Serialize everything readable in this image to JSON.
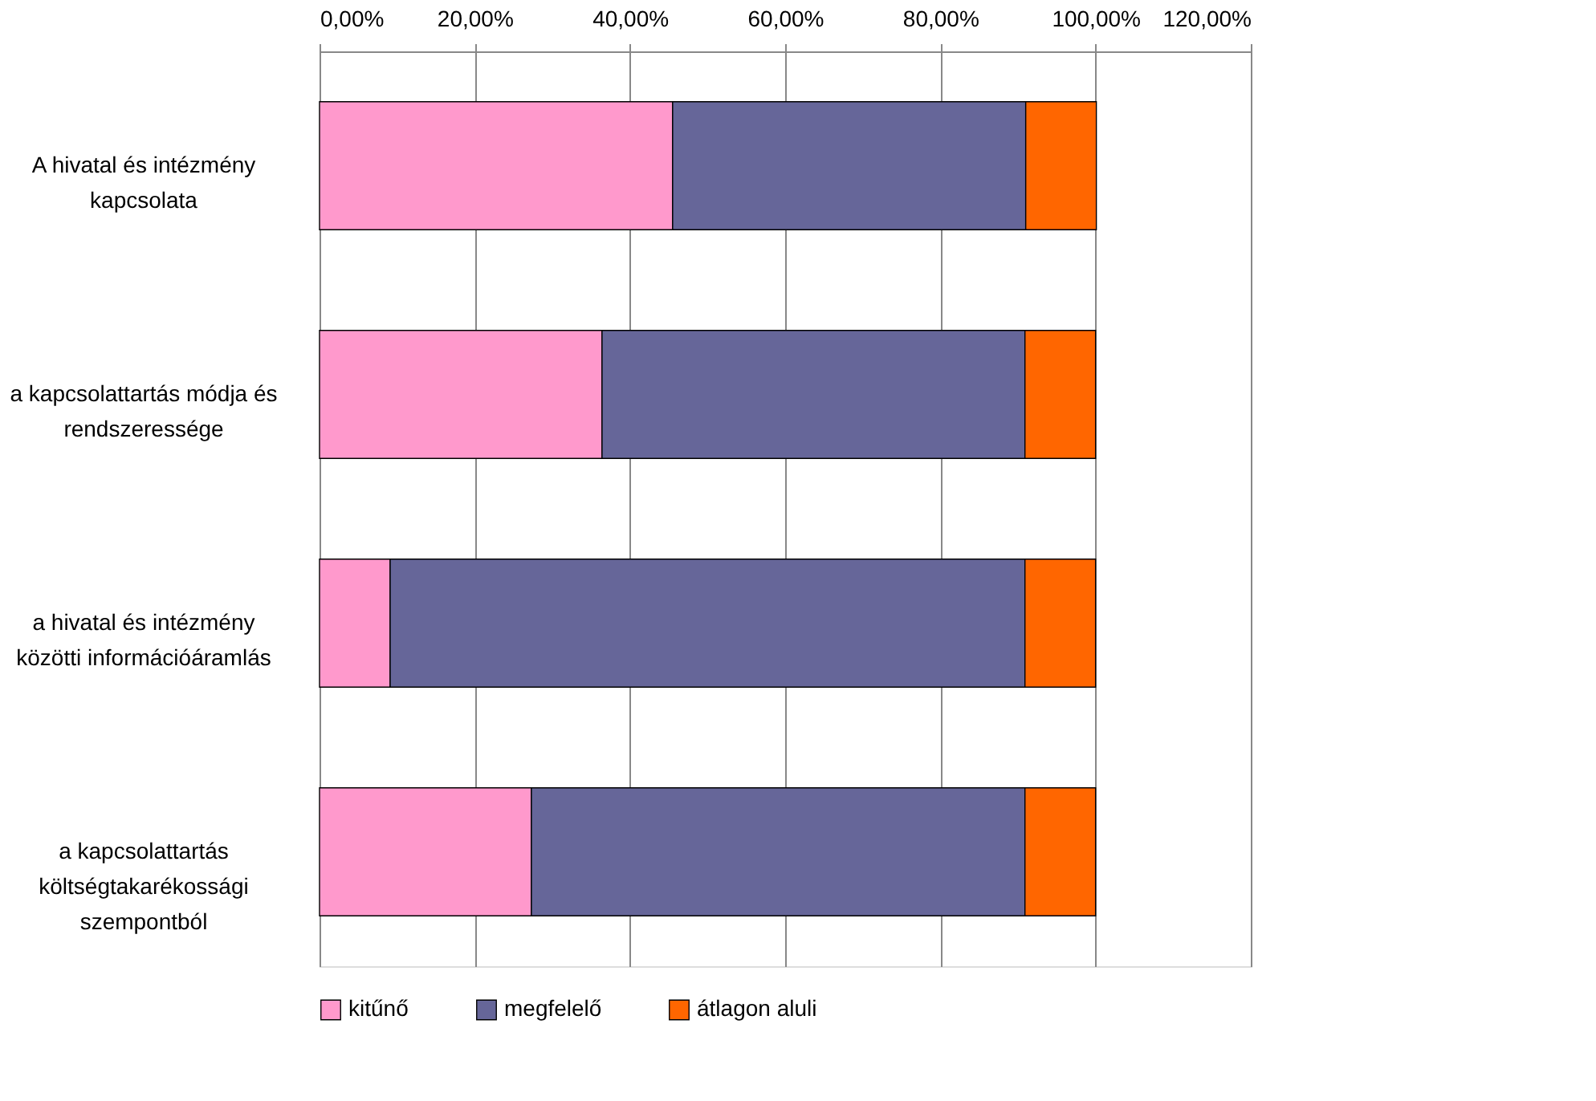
{
  "chart_data": {
    "type": "bar",
    "orientation": "horizontal",
    "stacked": true,
    "categories": [
      "A hivatal és intézmény kapcsolata",
      "a kapcsolattartás módja és rendszeressége",
      "a hivatal és intézmény közötti információáramlás",
      "a kapcsolattartás költségtakarékossági szempontból"
    ],
    "series": [
      {
        "name": "kitűnő",
        "color": "#ff99cc",
        "values": [
          45.5,
          36.4,
          9.1,
          27.3
        ]
      },
      {
        "name": "megfelelő",
        "color": "#666699",
        "values": [
          45.5,
          54.5,
          81.8,
          63.6
        ]
      },
      {
        "name": "átlagon aluli",
        "color": "#ff6600",
        "values": [
          9.1,
          9.1,
          9.1,
          9.1
        ]
      }
    ],
    "xlim": [
      0,
      120
    ],
    "xticks": [
      {
        "value": 0,
        "label": "0,00%"
      },
      {
        "value": 20,
        "label": "20,00%"
      },
      {
        "value": 40,
        "label": "40,00%"
      },
      {
        "value": 60,
        "label": "60,00%"
      },
      {
        "value": 80,
        "label": "80,00%"
      },
      {
        "value": 100,
        "label": "100,00%"
      },
      {
        "value": 120,
        "label": "120,00%"
      }
    ],
    "grid": "x",
    "legend": "bottom"
  }
}
